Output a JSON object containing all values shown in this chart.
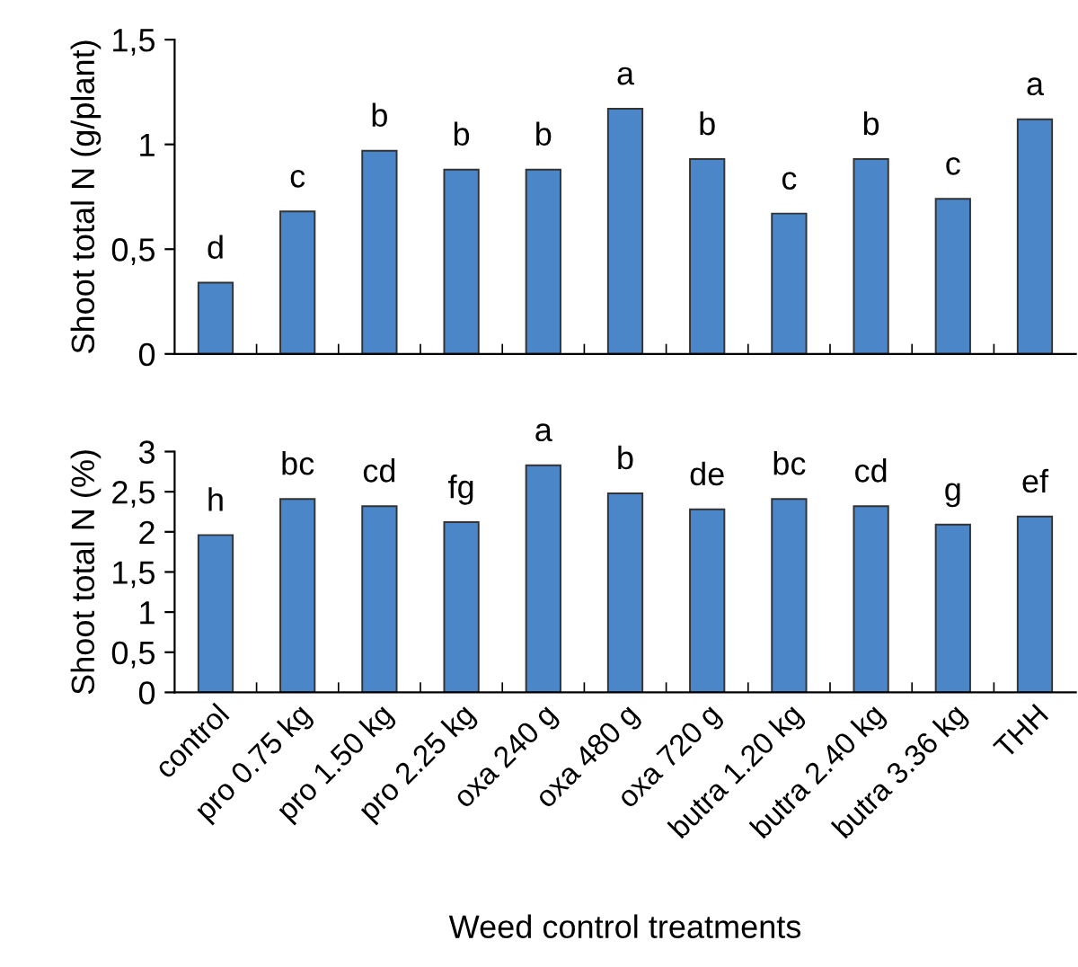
{
  "chart_data": [
    {
      "type": "bar",
      "ylabel": "Shoot total N (g/plant)",
      "tick_labels": "y",
      "color": "#4a86c8",
      "categories": [
        null,
        null,
        null,
        null,
        null,
        null,
        null,
        null,
        null,
        null,
        null
      ],
      "values": [
        0.34,
        0.68,
        0.97,
        0.88,
        0.88,
        1.17,
        0.93,
        0.67,
        0.93,
        0.74,
        1.12
      ],
      "ylim": [
        0,
        1.5
      ],
      "yticks": [
        0,
        {
          "value": 0.5,
          "label": "0,5"
        },
        1,
        {
          "value": 1.5,
          "label": "1,5"
        }
      ],
      "annotations": [
        "d",
        "c",
        "b",
        "b",
        "b",
        "a",
        "b",
        "c",
        "b",
        "c",
        "a"
      ]
    },
    {
      "type": "bar",
      "ylabel": "Shoot total N (%)",
      "xlabel": "Weed control treatments",
      "color": "#4a86c8",
      "categories": [
        "control",
        "pro 0.75 kg",
        "pro 1.50 kg",
        "pro 2.25 kg",
        "oxa 240 g",
        "oxa 480 g",
        "oxa 720 g",
        "butra 1.20 kg",
        "butra 2.40 kg",
        "butra 3.36 kg",
        "THH"
      ],
      "values": [
        1.96,
        2.41,
        2.32,
        2.12,
        2.83,
        2.48,
        2.28,
        2.41,
        2.32,
        2.09,
        2.19
      ],
      "ylim": [
        0,
        3
      ],
      "yticks": [
        0,
        {
          "value": 0.5,
          "label": "0,5"
        },
        1,
        {
          "value": 1.5,
          "label": "1,5"
        },
        2,
        {
          "value": 2.5,
          "label": "2,5"
        },
        3
      ],
      "annotations": [
        "h",
        "bc",
        "cd",
        "fg",
        "a",
        "b",
        "de",
        "bc",
        "cd",
        "g",
        "ef"
      ]
    }
  ]
}
